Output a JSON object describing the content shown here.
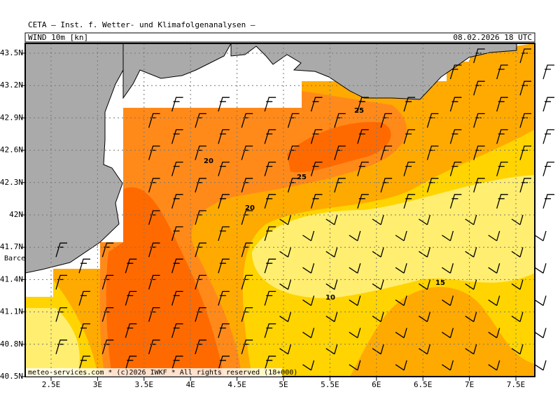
{
  "header": {
    "source": "CETA — Inst. f. Wetter- und Klimafolgenanalysen —",
    "field": "WIND 10m [kn]",
    "valid": "08.02.2026 18 UTC"
  },
  "axes": {
    "lon_ticks": [
      "2.5E",
      "3E",
      "3.5E",
      "4E",
      "4.5E",
      "5E",
      "5.5E",
      "6E",
      "6.5E",
      "7E",
      "7.5E"
    ],
    "lat_ticks": [
      "43.5N",
      "43.2N",
      "42.9N",
      "42.6N",
      "42.3N",
      "42N",
      "41.7N",
      "41.4N",
      "41.1N",
      "40.8N",
      "40.5N"
    ]
  },
  "contour_labels": [
    "25",
    "20",
    "25",
    "20",
    "10",
    "15"
  ],
  "place_label": "Barce",
  "footer": "meteo-services.com * (c)2026 IWKF * All rights reserved (18+000)"
}
